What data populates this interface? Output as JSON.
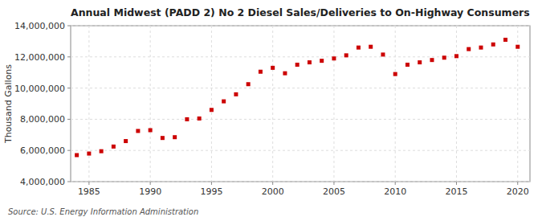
{
  "chart_data": {
    "type": "scatter",
    "title": "Annual Midwest (PADD 2) No 2 Diesel Sales/Deliveries to On-Highway Consumers",
    "ylabel": "Thousand Gallons",
    "source": "Source: U.S. Energy Information Administration",
    "x": [
      1984,
      1985,
      1986,
      1987,
      1988,
      1989,
      1990,
      1991,
      1992,
      1993,
      1994,
      1995,
      1996,
      1997,
      1998,
      1999,
      2000,
      2001,
      2002,
      2003,
      2004,
      2005,
      2006,
      2007,
      2008,
      2009,
      2010,
      2011,
      2012,
      2013,
      2014,
      2015,
      2016,
      2017,
      2018,
      2019,
      2020
    ],
    "values": [
      5700000,
      5800000,
      5950000,
      6250000,
      6600000,
      7250000,
      7300000,
      6800000,
      6850000,
      8000000,
      8050000,
      8600000,
      9150000,
      9600000,
      10250000,
      11050000,
      11300000,
      10950000,
      11500000,
      11650000,
      11750000,
      11900000,
      12100000,
      12600000,
      12650000,
      12150000,
      10900000,
      11500000,
      11650000,
      11800000,
      11950000,
      12050000,
      12500000,
      12600000,
      12800000,
      13100000,
      12650000
    ],
    "color": "#cc0000",
    "marker": "square",
    "xlim": [
      1983.5,
      2021
    ],
    "ylim": [
      4000000,
      14000000
    ],
    "xticks": [
      1985,
      1990,
      1995,
      2000,
      2005,
      2010,
      2015,
      2020
    ],
    "yticks": [
      {
        "value": 4000000,
        "label": "4,000,000"
      },
      {
        "value": 6000000,
        "label": "6,000,000"
      },
      {
        "value": 8000000,
        "label": "8,000,000"
      },
      {
        "value": 10000000,
        "label": "10,000,000"
      },
      {
        "value": 12000000,
        "label": "12,000,000"
      },
      {
        "value": 14000000,
        "label": "14,000,000"
      }
    ],
    "grid": true
  }
}
